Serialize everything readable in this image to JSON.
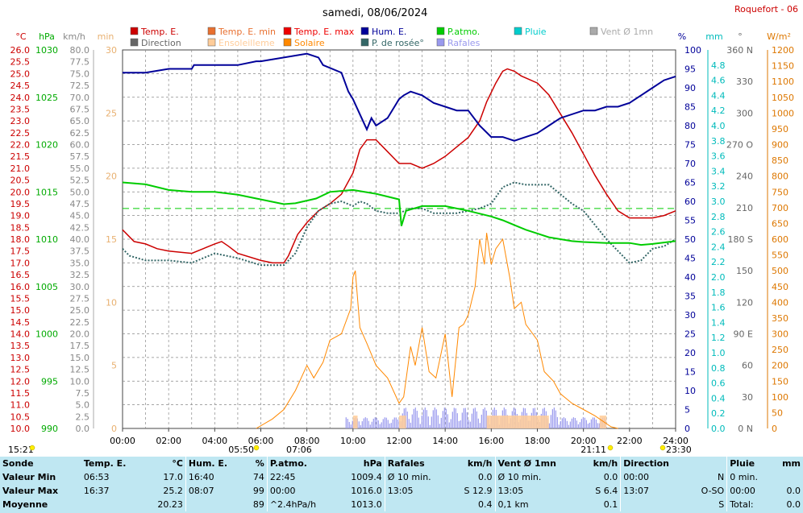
{
  "title": "samedi, 08/06/2024",
  "station": "Roquefort - 06",
  "legend": [
    {
      "label": "Temp. E.",
      "color": "#cc0000"
    },
    {
      "label": "Temp. E. min",
      "color": "#e87030"
    },
    {
      "label": "Temp. E. max",
      "color": "#ee0000"
    },
    {
      "label": "Hum. E.",
      "color": "#000099"
    },
    {
      "label": "P.atmo.",
      "color": "#00cc00"
    },
    {
      "label": "Pluie",
      "color": "#00cccc"
    },
    {
      "label": "Vent Ø 1mn",
      "color": "#aaaaaa"
    },
    {
      "label": "Direction",
      "color": "#666666"
    },
    {
      "label": "Ensoleilleme",
      "color": "#ffcc99"
    },
    {
      "label": "Solaire",
      "color": "#ff8800"
    },
    {
      "label": "P. de rosée°",
      "color": "#336666"
    },
    {
      "label": "Rafales",
      "color": "#9999ee"
    }
  ],
  "axis_units": {
    "temp": "°C",
    "pressure": "hPa",
    "wind": "km/h",
    "sun": "min",
    "humidity": "%",
    "rain": "mm",
    "direction": "°",
    "solar": "W/m²"
  },
  "chart_data": {
    "type": "line",
    "title": "samedi, 08/06/2024",
    "x_ticks": [
      "00:00",
      "02:00",
      "04:00",
      "06:00",
      "08:00",
      "10:00",
      "12:00",
      "14:00",
      "16:00",
      "18:00",
      "20:00",
      "22:00",
      "24:00"
    ],
    "axes": {
      "temp": {
        "unit": "°C",
        "range": [
          10,
          26
        ],
        "ticks": [
          "10.0",
          "10.5",
          "11.0",
          "11.5",
          "12.0",
          "12.5",
          "13.0",
          "13.5",
          "14.0",
          "14.5",
          "15.0",
          "15.5",
          "16.0",
          "16.5",
          "17.0",
          "17.5",
          "18.0",
          "18.5",
          "19.0",
          "19.5",
          "20.0",
          "20.5",
          "21.0",
          "21.5",
          "22.0",
          "22.5",
          "23.0",
          "23.5",
          "24.0",
          "24.5",
          "25.0",
          "25.5",
          "26.0"
        ],
        "color": "#cc0000"
      },
      "pressure": {
        "unit": "hPa",
        "range": [
          990,
          1030
        ],
        "ticks": [
          "990",
          "995",
          "1000",
          "1005",
          "1010",
          "1015",
          "1020",
          "1025",
          "1030"
        ],
        "color": "#00aa00"
      },
      "wind": {
        "unit": "km/h",
        "range": [
          0,
          80
        ],
        "ticks": [
          "0.0",
          "2.5",
          "5.0",
          "7.5",
          "10.0",
          "12.5",
          "15.0",
          "17.5",
          "20.0",
          "22.5",
          "25.0",
          "27.5",
          "30.0",
          "32.5",
          "35.0",
          "37.5",
          "40.0",
          "42.5",
          "45.0",
          "47.5",
          "50.0",
          "52.5",
          "55.0",
          "57.5",
          "60.0",
          "62.5",
          "65.0",
          "67.5",
          "70.0",
          "72.5",
          "75.0",
          "77.5",
          "80.0"
        ],
        "color": "#888888"
      },
      "sun": {
        "unit": "min",
        "range": [
          0,
          30
        ],
        "ticks": [
          "0",
          "5",
          "10",
          "15",
          "20",
          "25",
          "30"
        ],
        "color": "#e8b070"
      },
      "humidity": {
        "unit": "%",
        "range": [
          0,
          100
        ],
        "ticks": [
          "0",
          "5",
          "10",
          "15",
          "20",
          "25",
          "30",
          "35",
          "40",
          "45",
          "50",
          "55",
          "60",
          "65",
          "70",
          "75",
          "80",
          "85",
          "90",
          "95",
          "100"
        ],
        "color": "#000099"
      },
      "rain": {
        "unit": "mm",
        "range": [
          0,
          5
        ],
        "ticks": [
          "0.0",
          "0.2",
          "0.4",
          "0.6",
          "0.8",
          "1.0",
          "1.2",
          "1.4",
          "1.6",
          "1.8",
          "2.0",
          "2.2",
          "2.4",
          "2.6",
          "2.8",
          "3.0",
          "3.2",
          "3.4",
          "3.6",
          "3.8",
          "4.0",
          "4.2",
          "4.4",
          "4.6",
          "4.8"
        ],
        "color": "#00bbbb"
      },
      "direction": {
        "unit": "°",
        "range": [
          0,
          360
        ],
        "ticks": [
          "0 N",
          "30",
          "60",
          "90 E",
          "120",
          "150",
          "180 S",
          "210",
          "240",
          "270 O",
          "300",
          "330",
          "360 N"
        ],
        "color": "#666666"
      },
      "solar": {
        "unit": "W/m²",
        "range": [
          0,
          1200
        ],
        "ticks": [
          "0",
          "50",
          "100",
          "150",
          "200",
          "250",
          "300",
          "350",
          "400",
          "450",
          "500",
          "550",
          "600",
          "650",
          "700",
          "750",
          "800",
          "850",
          "900",
          "950",
          "1000",
          "1050",
          "1100",
          "1150",
          "1200"
        ],
        "color": "#dd7700"
      }
    },
    "series": [
      {
        "name": "Temp. E.",
        "axis": "temp",
        "color": "#cc0000",
        "x": [
          0,
          0.5,
          1,
          1.5,
          2,
          3,
          3.5,
          4,
          4.3,
          4.6,
          5,
          6,
          6.5,
          7,
          7.2,
          7.6,
          8,
          8.5,
          9,
          9.5,
          10,
          10.3,
          10.6,
          11,
          11.5,
          12,
          12.5,
          13,
          13.5,
          14,
          14.5,
          15,
          15.5,
          15.8,
          16.2,
          16.5,
          16.7,
          17,
          17.3,
          18,
          18.5,
          19,
          19.5,
          20,
          20.5,
          21,
          21.5,
          22,
          22.5,
          23,
          23.5,
          24
        ],
        "y": [
          18.4,
          17.9,
          17.8,
          17.6,
          17.5,
          17.4,
          17.6,
          17.8,
          17.9,
          17.7,
          17.4,
          17.1,
          17.0,
          17.0,
          17.3,
          18.2,
          18.7,
          19.2,
          19.5,
          19.9,
          20.8,
          21.8,
          22.2,
          22.2,
          21.7,
          21.2,
          21.2,
          21.0,
          21.2,
          21.5,
          21.9,
          22.3,
          23.0,
          23.8,
          24.6,
          25.1,
          25.2,
          25.1,
          24.9,
          24.6,
          24.1,
          23.3,
          22.5,
          21.6,
          20.7,
          19.9,
          19.2,
          18.9,
          18.9,
          18.9,
          19.0,
          19.2
        ]
      },
      {
        "name": "P. de rosée°",
        "axis": "temp",
        "color": "#336666",
        "x": [
          0,
          0.3,
          1,
          2,
          3,
          4,
          5,
          6,
          6.5,
          7,
          7.5,
          8,
          8.5,
          9,
          9.5,
          10,
          10.3,
          10.6,
          11,
          11.5,
          12,
          12.5,
          13,
          13.5,
          14,
          14.5,
          15,
          15.5,
          16,
          16.5,
          17,
          17.5,
          18,
          18.5,
          19,
          19.5,
          20,
          20.5,
          21,
          21.5,
          22,
          22.5,
          23,
          23.5,
          24
        ],
        "y": [
          17.6,
          17.3,
          17.1,
          17.1,
          17.0,
          17.4,
          17.2,
          16.9,
          16.9,
          16.9,
          17.4,
          18.5,
          19.2,
          19.5,
          19.6,
          19.4,
          19.6,
          19.5,
          19.2,
          19.1,
          19.1,
          19.3,
          19.3,
          19.1,
          19.1,
          19.1,
          19.2,
          19.3,
          19.5,
          20.2,
          20.4,
          20.3,
          20.3,
          20.3,
          19.9,
          19.5,
          19.2,
          18.6,
          18.0,
          17.5,
          17.0,
          17.1,
          17.6,
          17.7,
          18.0
        ]
      },
      {
        "name": "Hum. E.",
        "axis": "humidity",
        "color": "#000099",
        "x": [
          0,
          1,
          2,
          3,
          3.1,
          5,
          5.8,
          6,
          8,
          8.5,
          8.7,
          9.5,
          9.8,
          10,
          10.3,
          10.6,
          10.8,
          11,
          11.5,
          12,
          12.2,
          12.5,
          13,
          13.5,
          14,
          14.5,
          15,
          15.5,
          16,
          16.5,
          17,
          17.5,
          18,
          18.5,
          19,
          20,
          20.5,
          21,
          21.5,
          22,
          22.5,
          23,
          23.5,
          24
        ],
        "y": [
          94,
          94,
          95,
          95,
          96,
          96,
          97,
          97,
          99,
          98,
          96,
          94,
          89,
          87,
          83,
          79,
          82,
          80,
          82,
          87,
          88,
          89,
          88,
          86,
          85,
          84,
          84,
          80,
          77,
          77,
          76,
          77,
          78,
          80,
          82,
          84,
          84,
          85,
          85,
          86,
          88,
          90,
          92,
          93
        ]
      },
      {
        "name": "P.atmo.",
        "axis": "pressure",
        "color": "#00cc00",
        "x": [
          0,
          1,
          2,
          3,
          4,
          5,
          6,
          7,
          7.5,
          8.4,
          9,
          10,
          11,
          12,
          12.1,
          12.3,
          13,
          14,
          15,
          16,
          16.5,
          17,
          17.5,
          18,
          18.5,
          19,
          19.5,
          20,
          21,
          22,
          22.5,
          23,
          24
        ],
        "y": [
          1016.0,
          1015.8,
          1015.2,
          1015.0,
          1015.0,
          1014.7,
          1014.2,
          1013.7,
          1013.8,
          1014.3,
          1015.0,
          1015.2,
          1014.8,
          1014.2,
          1011.4,
          1013.0,
          1013.5,
          1013.5,
          1013.0,
          1012.4,
          1012.0,
          1011.5,
          1011.0,
          1010.6,
          1010.2,
          1010.0,
          1009.8,
          1009.7,
          1009.6,
          1009.6,
          1009.4,
          1009.5,
          1009.8
        ]
      },
      {
        "name": "Solaire",
        "axis": "solar",
        "color": "#ff8800",
        "x": [
          5.8,
          6.5,
          7,
          7.5,
          8,
          8.3,
          8.7,
          9,
          9.5,
          9.9,
          10,
          10.1,
          10.3,
          10.6,
          11,
          11.5,
          12,
          12.2,
          12.5,
          12.7,
          13,
          13.3,
          13.6,
          14,
          14.3,
          14.6,
          14.8,
          15,
          15.3,
          15.5,
          15.7,
          15.8,
          16,
          16.2,
          16.5,
          16.8,
          17,
          17.3,
          17.5,
          17.8,
          18,
          18.3,
          18.7,
          19,
          19.5,
          20,
          20.5,
          21,
          21.2,
          21.5
        ],
        "y": [
          0,
          30,
          60,
          120,
          200,
          160,
          210,
          280,
          300,
          380,
          480,
          500,
          320,
          270,
          200,
          160,
          80,
          100,
          260,
          200,
          320,
          180,
          160,
          300,
          100,
          320,
          330,
          360,
          450,
          600,
          520,
          620,
          520,
          570,
          600,
          480,
          380,
          400,
          330,
          300,
          280,
          180,
          150,
          110,
          80,
          60,
          40,
          15,
          5,
          0
        ]
      }
    ],
    "ylim_temp": [
      10,
      26
    ],
    "ylim_pressure": [
      990,
      1030
    ],
    "reference_line": {
      "axis": "temp",
      "value": 19.3,
      "style": "dashed",
      "color": "#00cc00"
    },
    "grid": true,
    "legend_position": "top",
    "time_markers": [
      {
        "left": "15:21",
        "right": "05:50"
      },
      {
        "label": "07:06"
      },
      {
        "label": "21:11"
      },
      {
        "label": "23:30"
      }
    ]
  },
  "stats": {
    "headers": [
      "Sonde",
      "Temp. E.",
      "°C",
      "Hum. E.",
      "%",
      "P.atmo.",
      "hPa",
      "Rafales",
      "km/h",
      "Vent Ø 1mn",
      "km/h",
      "Direction",
      "",
      "Pluie",
      "mm"
    ],
    "rows": [
      {
        "label": "Valeur Min",
        "cells": [
          "06:53",
          "17.0",
          "16:40",
          "74",
          "22:45",
          "1009.4",
          "Ø 10 min.",
          "0.0",
          "Ø 10 min.",
          "0.0",
          "00:00",
          "N",
          "0 min.",
          ""
        ]
      },
      {
        "label": "Valeur Max",
        "cells": [
          "16:37",
          "25.2",
          "08:07",
          "99",
          "00:00",
          "1016.0",
          "13:05",
          "S 12.9",
          "13:05",
          "S 6.4",
          "13:07",
          "O-SO",
          "00:00",
          "0.0"
        ]
      },
      {
        "label": "Moyenne",
        "cells": [
          "",
          "20.23",
          "",
          "89",
          "^2.4hPa/h",
          "1013.0",
          "",
          "0.4",
          "0,1 km",
          "0.1",
          "",
          "S",
          "Total:",
          "0.0"
        ]
      }
    ]
  }
}
